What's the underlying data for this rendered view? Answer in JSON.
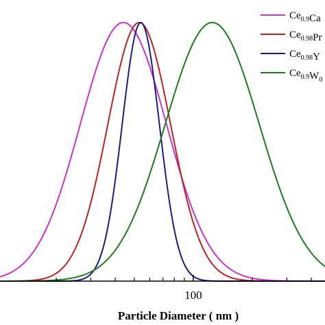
{
  "chart_data": {
    "type": "line",
    "title": "",
    "xlabel": "Particle Diameter ( nm )",
    "ylabel": "",
    "x_scale": "log",
    "xlim": [
      10,
      470
    ],
    "ylim": [
      0,
      1.0
    ],
    "grid": false,
    "legend_position": "top-right",
    "x_tick_labels": [
      {
        "value": 100,
        "label": "100"
      }
    ],
    "x_minor_ticks": [
      20,
      30,
      40,
      50,
      60,
      70,
      80,
      90,
      200,
      300,
      400
    ],
    "series": [
      {
        "name_parts": [
          {
            "text": "Ce",
            "sub": false
          },
          {
            "text": "0.9",
            "sub": true
          },
          {
            "text": "Ca",
            "sub": false
          }
        ],
        "color": "#cc33cc",
        "shape": "lognormal",
        "peak_x": 44,
        "peak_y": 0.92,
        "log_sigma": 0.22
      },
      {
        "name_parts": [
          {
            "text": "Ce",
            "sub": false
          },
          {
            "text": "0.98",
            "sub": true
          },
          {
            "text": "Pr",
            "sub": false
          }
        ],
        "color": "#bb2222",
        "shape": "lognormal",
        "peak_x": 53,
        "peak_y": 0.92,
        "log_sigma": 0.16
      },
      {
        "name_parts": [
          {
            "text": "Ce",
            "sub": false
          },
          {
            "text": "0.98",
            "sub": true
          },
          {
            "text": "Y",
            "sub": false
          }
        ],
        "color": "#1a1a88",
        "shape": "lognormal",
        "peak_x": 54,
        "peak_y": 0.92,
        "log_sigma": 0.095
      },
      {
        "name_parts": [
          {
            "text": "Ce",
            "sub": false
          },
          {
            "text": "0.9",
            "sub": true
          },
          {
            "text": "W",
            "sub": false
          },
          {
            "text": "0",
            "sub": true
          }
        ],
        "color": "#1f7a1f",
        "shape": "lognormal",
        "peak_x": 125,
        "peak_y": 0.92,
        "log_sigma": 0.24
      }
    ]
  }
}
